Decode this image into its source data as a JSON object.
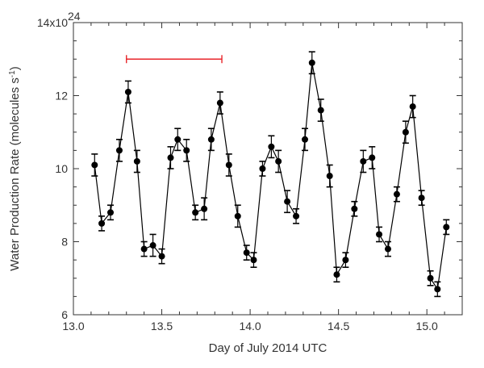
{
  "chart_data": {
    "type": "scatter",
    "title": "",
    "xlabel": "Day of July 2014 UTC",
    "ylabel": "Water Production Rate (molecules s",
    "ylabel_sup": "-1",
    "ylabel_close": ")",
    "xlim": [
      13.0,
      15.2
    ],
    "ylim": [
      6,
      14
    ],
    "x_ticks": [
      13.0,
      13.5,
      14.0,
      14.5,
      15.0
    ],
    "x_tick_labels": [
      "13.0",
      "13.5",
      "14.0",
      "14.5",
      "15.0"
    ],
    "y_ticks": [
      6,
      8,
      10,
      12,
      14
    ],
    "y_tick_labels": [
      "6",
      "8",
      "10",
      "12",
      "14x10"
    ],
    "y_multiplier_exponent": "24",
    "grid": false,
    "series": [
      {
        "color": "#000000",
        "marker": "circle",
        "line": "solid",
        "error_bars": true,
        "x": [
          13.12,
          13.16,
          13.21,
          13.26,
          13.31,
          13.36,
          13.4,
          13.45,
          13.5,
          13.55,
          13.59,
          13.64,
          13.69,
          13.74,
          13.78,
          13.83,
          13.88,
          13.93,
          13.98,
          14.02,
          14.07,
          14.12,
          14.16,
          14.21,
          14.26,
          14.31,
          14.35,
          14.4,
          14.45,
          14.49,
          14.54,
          14.59,
          14.64,
          14.69,
          14.73,
          14.78,
          14.83,
          14.88,
          14.92,
          14.97,
          15.02,
          15.06,
          15.11
        ],
        "y": [
          10.1,
          8.5,
          8.8,
          10.5,
          12.1,
          10.2,
          7.8,
          7.9,
          7.6,
          10.3,
          10.8,
          10.5,
          8.8,
          8.9,
          10.8,
          11.8,
          10.1,
          8.7,
          7.7,
          7.5,
          10.0,
          10.6,
          10.2,
          9.1,
          8.7,
          10.8,
          12.9,
          11.6,
          9.8,
          7.1,
          7.5,
          8.9,
          10.2,
          10.3,
          8.2,
          7.8,
          9.3,
          11.0,
          11.7,
          9.2,
          7.0,
          6.7,
          8.4
        ],
        "error": [
          0.3,
          0.2,
          0.2,
          0.3,
          0.3,
          0.3,
          0.2,
          0.3,
          0.2,
          0.3,
          0.3,
          0.3,
          0.2,
          0.3,
          0.3,
          0.3,
          0.3,
          0.3,
          0.2,
          0.2,
          0.2,
          0.3,
          0.3,
          0.3,
          0.2,
          0.3,
          0.3,
          0.3,
          0.3,
          0.2,
          0.2,
          0.2,
          0.3,
          0.3,
          0.2,
          0.2,
          0.2,
          0.3,
          0.3,
          0.2,
          0.2,
          0.2,
          0.2
        ]
      }
    ],
    "annotations": [
      {
        "type": "horizontal-interval",
        "color": "#e8262b",
        "x_start": 13.3,
        "x_end": 13.84,
        "y": 13.0
      }
    ]
  }
}
